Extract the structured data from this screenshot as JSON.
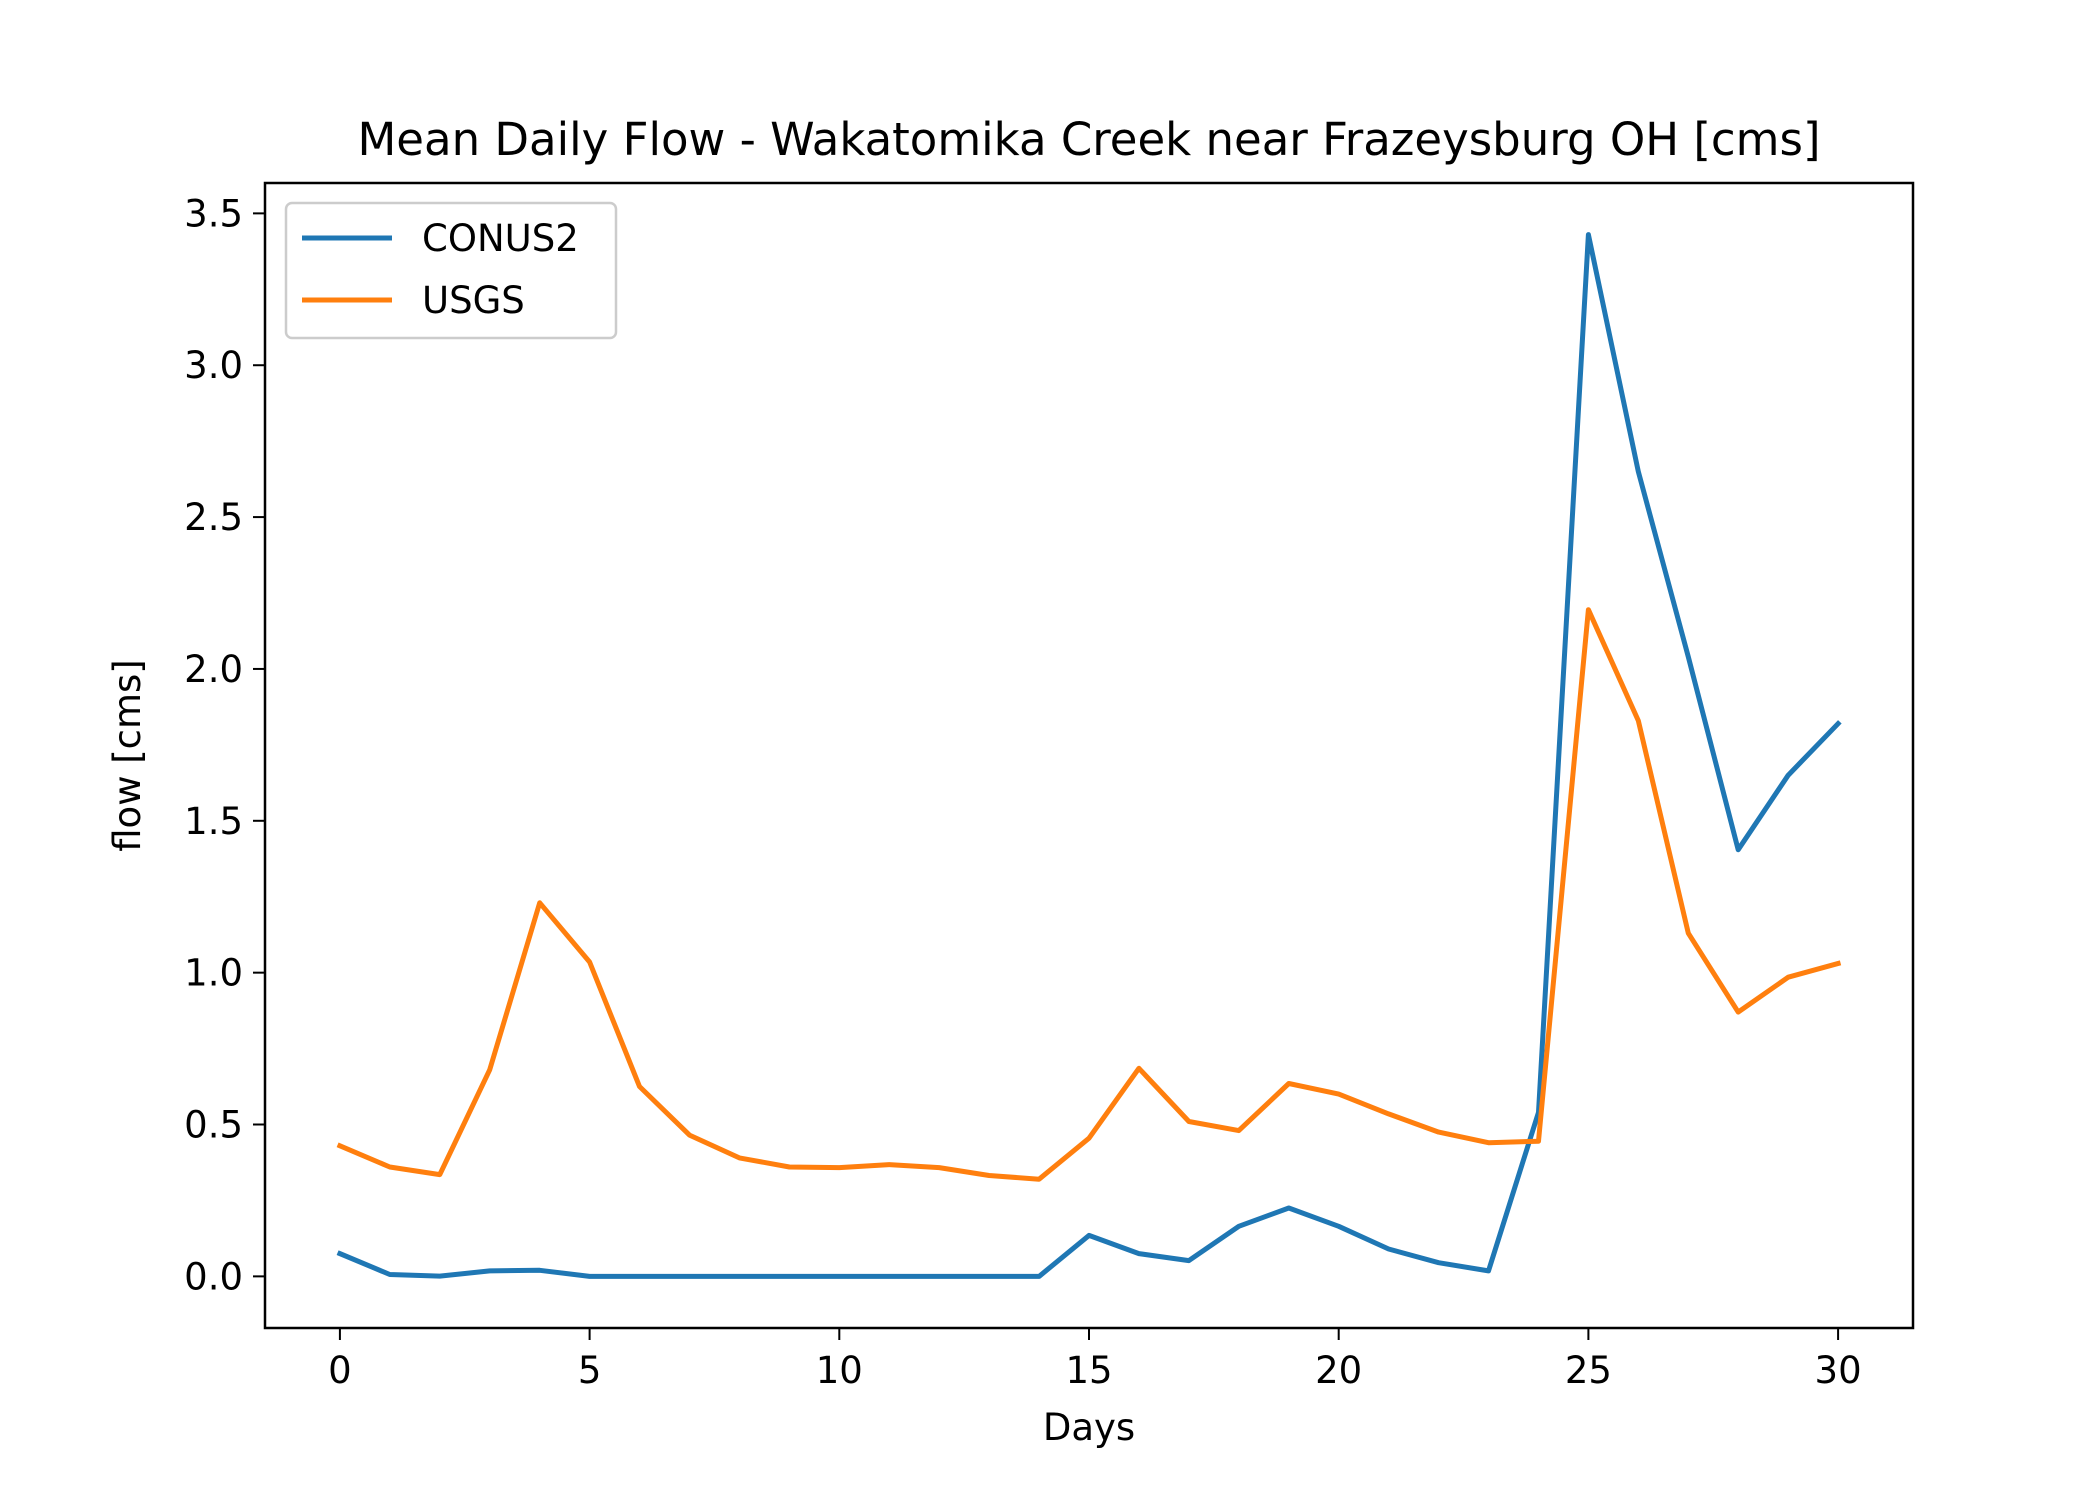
{
  "chart_data": {
    "type": "line",
    "title": "Mean Daily Flow - Wakatomika Creek near Frazeysburg OH [cms]",
    "xlabel": "Days",
    "ylabel": "flow [cms]",
    "xlim": [
      -1.5,
      31.5
    ],
    "ylim": [
      -0.17,
      3.6
    ],
    "xticks": [
      0,
      5,
      10,
      15,
      20,
      25,
      30
    ],
    "yticks": [
      0.0,
      0.5,
      1.0,
      1.5,
      2.0,
      2.5,
      3.0,
      3.5
    ],
    "xtick_labels": [
      "0",
      "5",
      "10",
      "15",
      "20",
      "25",
      "30"
    ],
    "ytick_labels": [
      "0.0",
      "0.5",
      "1.0",
      "1.5",
      "2.0",
      "2.5",
      "3.0",
      "3.5"
    ],
    "grid": false,
    "legend_position": "top-left",
    "x": [
      0,
      1,
      2,
      3,
      4,
      5,
      6,
      7,
      8,
      9,
      10,
      11,
      12,
      13,
      14,
      15,
      16,
      17,
      18,
      19,
      20,
      21,
      22,
      23,
      24,
      25,
      26,
      27,
      28,
      29,
      30
    ],
    "series": [
      {
        "name": "CONUS2",
        "color": "#1f77b4",
        "values": [
          0.075,
          0.006,
          0.001,
          0.018,
          0.02,
          0.0,
          0.0,
          0.0,
          0.0,
          0.0,
          0.0,
          0.0,
          0.0,
          0.0,
          0.0,
          0.135,
          0.075,
          0.052,
          0.165,
          0.225,
          0.165,
          0.09,
          0.045,
          0.018,
          0.54,
          3.43,
          2.65,
          2.04,
          1.405,
          1.65,
          1.82
        ]
      },
      {
        "name": "USGS",
        "color": "#ff7f0e",
        "values": [
          0.43,
          0.36,
          0.335,
          0.68,
          1.23,
          1.035,
          0.625,
          0.465,
          0.39,
          0.36,
          0.358,
          0.368,
          0.358,
          0.332,
          0.32,
          0.455,
          0.685,
          0.51,
          0.48,
          0.635,
          0.6,
          0.535,
          0.475,
          0.44,
          0.445,
          2.195,
          1.83,
          1.13,
          0.87,
          0.985,
          1.03
        ]
      }
    ]
  }
}
